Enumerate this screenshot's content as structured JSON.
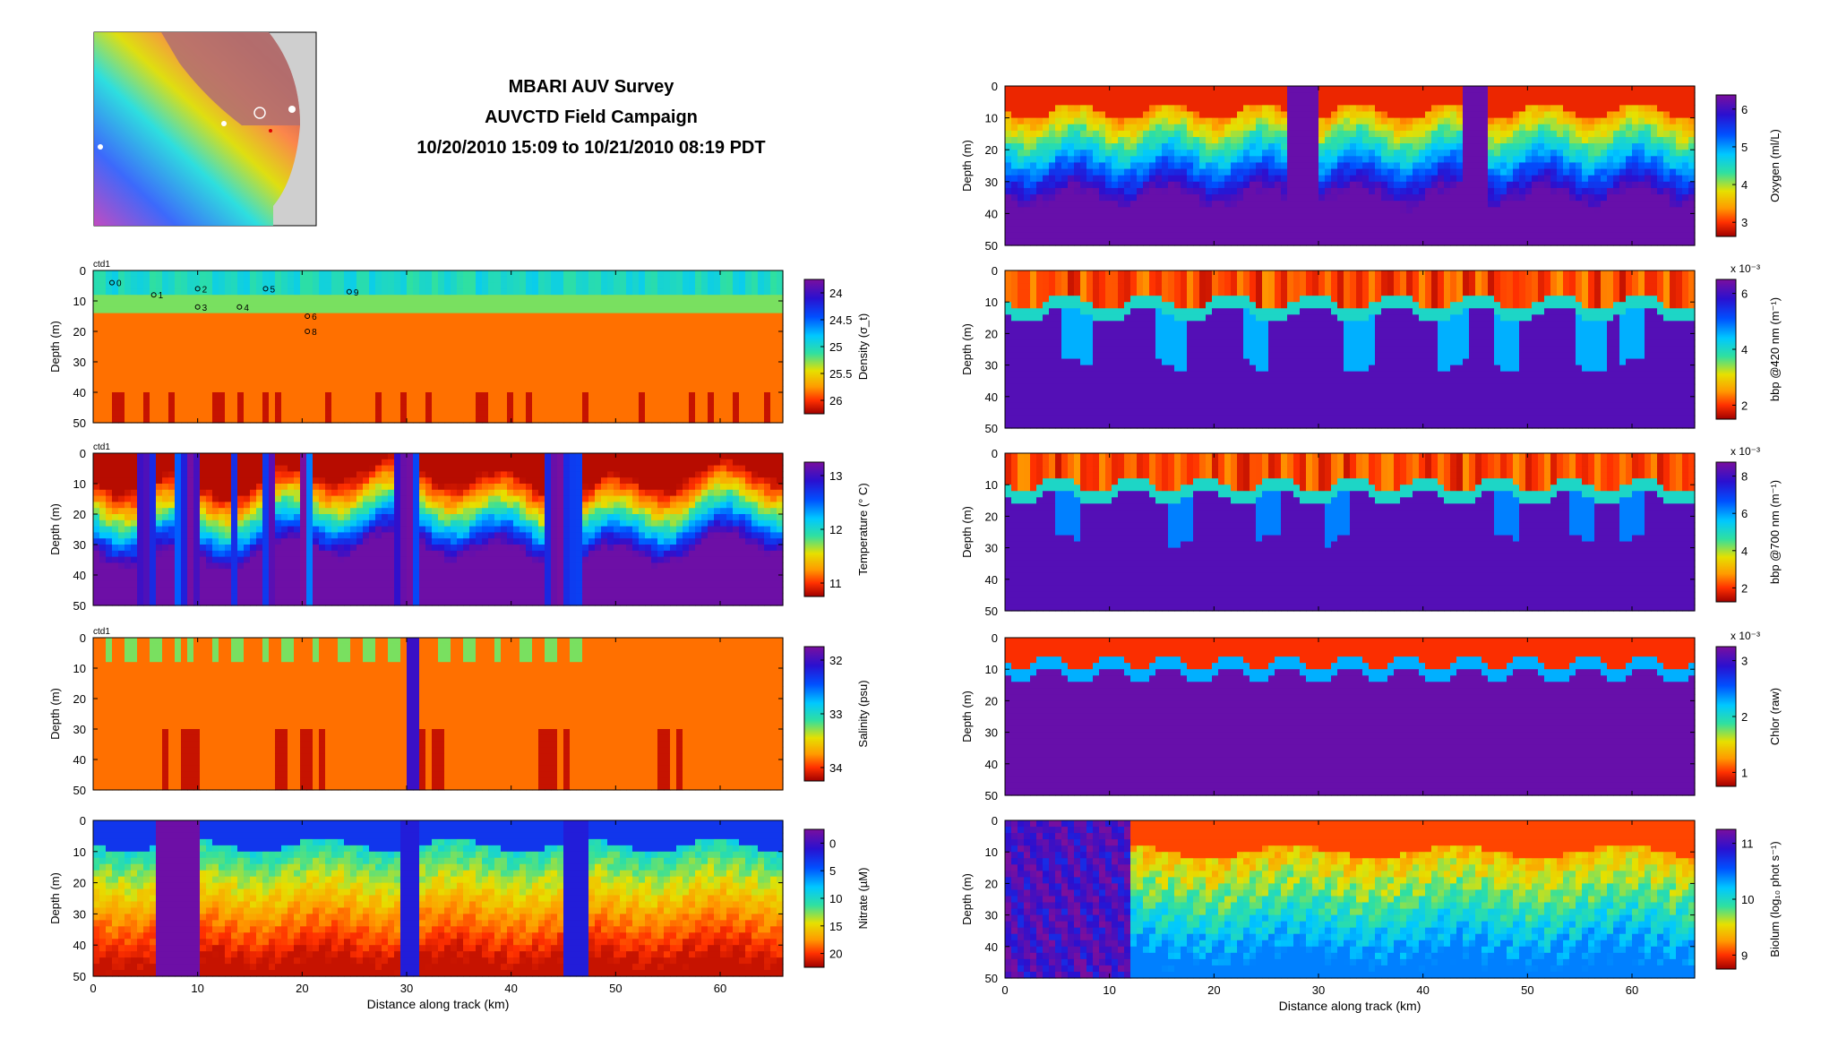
{
  "header": {
    "title_line1": "MBARI AUV Survey",
    "title_line2": "AUVCTD Field Campaign",
    "title_line3": "10/20/2010 15:09 to 10/21/2010 08:19 PDT"
  },
  "chart_data": [
    {
      "type": "heatmap",
      "name": "density",
      "tag": "ctd1",
      "ylabel": "Depth (m)",
      "xlabel": "",
      "cbar_label": "Density (σ_t)",
      "xlim": [
        0,
        66
      ],
      "ylim": [
        50,
        0
      ],
      "yticks": [
        0,
        10,
        20,
        30,
        40,
        50
      ],
      "xticks": [
        0,
        10,
        20,
        30,
        40,
        50,
        60
      ],
      "xticklabels": [],
      "cbar_ticks": [
        "24",
        "24.5",
        "25",
        "25.5",
        "26"
      ],
      "cbar_exp": "",
      "stations": [
        {
          "label": "0",
          "x": 1.8,
          "d": 4
        },
        {
          "label": "1",
          "x": 5.8,
          "d": 8
        },
        {
          "label": "2",
          "x": 10,
          "d": 6
        },
        {
          "label": "3",
          "x": 10,
          "d": 12
        },
        {
          "label": "4",
          "x": 14,
          "d": 12
        },
        {
          "label": "5",
          "x": 16.5,
          "d": 6
        },
        {
          "label": "6",
          "x": 20.5,
          "d": 15
        },
        {
          "label": "8",
          "x": 20.5,
          "d": 20
        },
        {
          "label": "9",
          "x": 24.5,
          "d": 7
        }
      ]
    },
    {
      "type": "heatmap",
      "name": "temperature",
      "tag": "ctd1",
      "ylabel": "Depth (m)",
      "xlabel": "",
      "cbar_label": "Temperature (° C)",
      "xlim": [
        0,
        66
      ],
      "ylim": [
        50,
        0
      ],
      "yticks": [
        0,
        10,
        20,
        30,
        40,
        50
      ],
      "xticks": [
        0,
        10,
        20,
        30,
        40,
        50,
        60
      ],
      "xticklabels": [],
      "cbar_ticks": [
        "13",
        "12",
        "11"
      ],
      "cbar_exp": "",
      "stations": []
    },
    {
      "type": "heatmap",
      "name": "salinity",
      "tag": "ctd1",
      "ylabel": "Depth (m)",
      "xlabel": "",
      "cbar_label": "Salinity (psu)",
      "xlim": [
        0,
        66
      ],
      "ylim": [
        50,
        0
      ],
      "yticks": [
        0,
        10,
        20,
        30,
        40,
        50
      ],
      "xticks": [
        0,
        10,
        20,
        30,
        40,
        50,
        60
      ],
      "xticklabels": [],
      "cbar_ticks": [
        "32",
        "33",
        "34"
      ],
      "cbar_exp": "",
      "stations": []
    },
    {
      "type": "heatmap",
      "name": "nitrate",
      "tag": "",
      "ylabel": "Depth (m)",
      "xlabel": "Distance along track (km)",
      "cbar_label": "Nitrate (µM)",
      "xlim": [
        0,
        66
      ],
      "ylim": [
        50,
        0
      ],
      "yticks": [
        0,
        10,
        20,
        30,
        40,
        50
      ],
      "xticks": [
        0,
        10,
        20,
        30,
        40,
        50,
        60
      ],
      "xticklabels": [
        "0",
        "10",
        "20",
        "30",
        "40",
        "50",
        "60"
      ],
      "cbar_ticks": [
        "0",
        "5",
        "10",
        "15",
        "20"
      ],
      "cbar_exp": "",
      "stations": []
    },
    {
      "type": "heatmap",
      "name": "oxygen",
      "tag": "",
      "ylabel": "Depth (m)",
      "xlabel": "",
      "cbar_label": "Oxygen (ml/L)",
      "xlim": [
        0,
        66
      ],
      "ylim": [
        50,
        0
      ],
      "yticks": [
        0,
        10,
        20,
        30,
        40,
        50
      ],
      "xticks": [
        0,
        10,
        20,
        30,
        40,
        50,
        60
      ],
      "xticklabels": [],
      "cbar_ticks": [
        "6",
        "5",
        "4",
        "3"
      ],
      "cbar_exp": "",
      "stations": []
    },
    {
      "type": "heatmap",
      "name": "bbp420",
      "tag": "",
      "ylabel": "Depth (m)",
      "xlabel": "",
      "cbar_label": "bbp @420 nm (m⁻¹)",
      "xlim": [
        0,
        66
      ],
      "ylim": [
        50,
        0
      ],
      "yticks": [
        0,
        10,
        20,
        30,
        40,
        50
      ],
      "xticks": [
        0,
        10,
        20,
        30,
        40,
        50,
        60
      ],
      "xticklabels": [],
      "cbar_ticks": [
        "6",
        "4",
        "2"
      ],
      "cbar_exp": "x 10⁻³",
      "stations": []
    },
    {
      "type": "heatmap",
      "name": "bbp700",
      "tag": "",
      "ylabel": "Depth (m)",
      "xlabel": "",
      "cbar_label": "bbp @700 nm (m⁻¹)",
      "xlim": [
        0,
        66
      ],
      "ylim": [
        50,
        0
      ],
      "yticks": [
        0,
        10,
        20,
        30,
        40,
        50
      ],
      "xticks": [
        0,
        10,
        20,
        30,
        40,
        50,
        60
      ],
      "xticklabels": [],
      "cbar_ticks": [
        "8",
        "6",
        "4",
        "2"
      ],
      "cbar_exp": "x 10⁻³",
      "stations": []
    },
    {
      "type": "heatmap",
      "name": "chlor",
      "tag": "",
      "ylabel": "Depth (m)",
      "xlabel": "",
      "cbar_label": "Chlor (raw)",
      "xlim": [
        0,
        66
      ],
      "ylim": [
        50,
        0
      ],
      "yticks": [
        0,
        10,
        20,
        30,
        40,
        50
      ],
      "xticks": [
        0,
        10,
        20,
        30,
        40,
        50,
        60
      ],
      "xticklabels": [],
      "cbar_ticks": [
        "3",
        "2",
        "1"
      ],
      "cbar_exp": "x 10⁻³",
      "stations": []
    },
    {
      "type": "heatmap",
      "name": "biolum",
      "tag": "",
      "ylabel": "Depth (m)",
      "xlabel": "Distance along track (km)",
      "cbar_label": "Biolum (log₁₀ phot s⁻¹)",
      "xlim": [
        0,
        66
      ],
      "ylim": [
        50,
        0
      ],
      "yticks": [
        0,
        10,
        20,
        30,
        40,
        50
      ],
      "xticks": [
        0,
        10,
        20,
        30,
        40,
        50,
        60
      ],
      "xticklabels": [
        "0",
        "10",
        "20",
        "30",
        "40",
        "50",
        "60"
      ],
      "cbar_ticks": [
        "11",
        "10",
        "9"
      ],
      "cbar_exp": "",
      "stations": []
    }
  ],
  "colors": {
    "jet_stops": [
      "#7a0f9e",
      "#2a10d0",
      "#0050ff",
      "#00c8ff",
      "#30e0a0",
      "#e6e000",
      "#ff9a00",
      "#ff3000",
      "#a00000"
    ],
    "land": "#cfcfcf"
  }
}
